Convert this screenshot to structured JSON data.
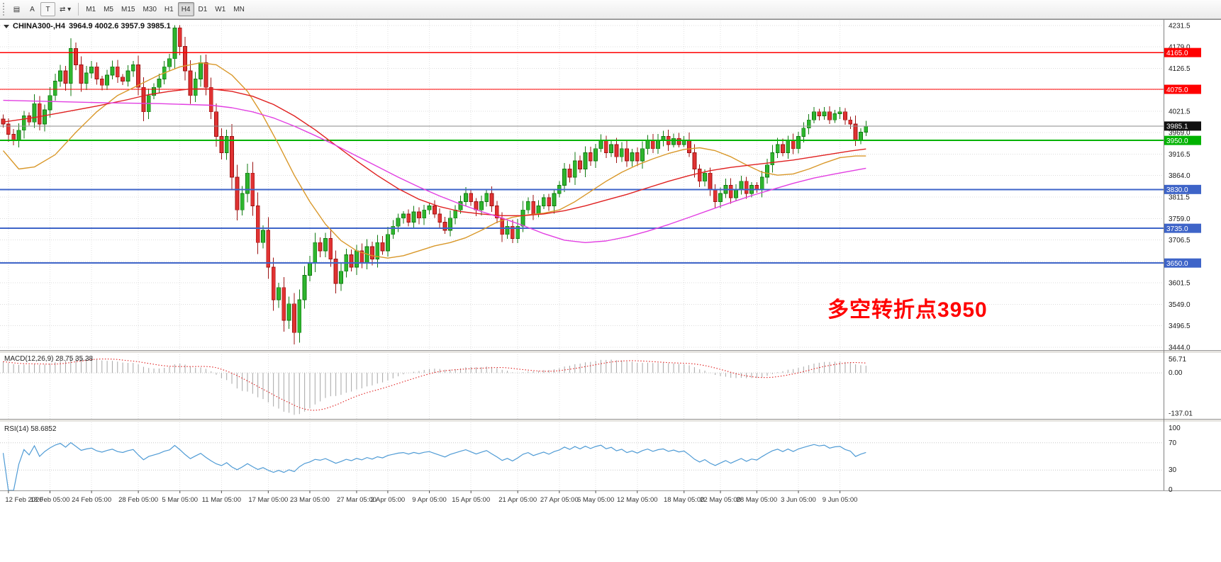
{
  "toolbar": {
    "left_buttons": [
      {
        "name": "chart-display-button",
        "label": "▤",
        "boxed": false
      },
      {
        "name": "button-a",
        "label": "A",
        "boxed": false
      },
      {
        "name": "button-t",
        "label": "T",
        "boxed": true
      },
      {
        "name": "symbols-arrows-dropdown-button",
        "label": "⇄ ▾",
        "boxed": false
      }
    ],
    "timeframes": [
      "M1",
      "M5",
      "M15",
      "M30",
      "H1",
      "H4",
      "D1",
      "W1",
      "MN"
    ],
    "active_timeframe": "H4"
  },
  "chart": {
    "title": {
      "symbol": "CHINA300-,H4",
      "ohlc": "3964.9 4002.6 3957.9 3985.1"
    },
    "annotation": {
      "text": "多空转折点3950",
      "color": "#ff0000"
    },
    "price_axis": {
      "range": {
        "min": 3437,
        "max": 4245
      },
      "visible_ticks": [
        4231.5,
        4179.0,
        4126.5,
        4021.5,
        3969.0,
        3916.5,
        3864.0,
        3811.5,
        3759.0,
        3706.5,
        3601.5,
        3549.0,
        3496.5,
        3444.0
      ],
      "grid_ticks": [
        4231.5,
        4179.0,
        4126.5,
        4074.0,
        4021.5,
        3969.0,
        3916.5,
        3864.0,
        3811.5,
        3759.0,
        3706.5,
        3654.0,
        3601.5,
        3549.0,
        3496.5,
        3444.0
      ]
    },
    "current_price": {
      "value": 3985.1,
      "label": "3985.1",
      "box_color": "#111111"
    },
    "hlines": [
      {
        "price": 4165.0,
        "label": "4165.0",
        "color": "#ff0000",
        "width": 1.4
      },
      {
        "price": 4075.0,
        "label": "4075.0",
        "color": "#ff0000",
        "width": 1.4
      },
      {
        "price": 3950.0,
        "label": "3950.0",
        "color": "#00b200",
        "width": 2
      },
      {
        "price": 3830.0,
        "label": "3830.0",
        "color": "#3e64c8",
        "width": 2
      },
      {
        "price": 3735.0,
        "label": "3735.0",
        "color": "#3e64c8",
        "width": 2
      },
      {
        "price": 3650.0,
        "label": "3650.0",
        "color": "#3e64c8",
        "width": 2
      }
    ],
    "candles": {
      "up_color": "#2eb52e",
      "up_stroke": "#117a11",
      "down_color": "#e03232",
      "down_stroke": "#9c1313",
      "closes": [
        3990,
        3965,
        3950,
        3975,
        4010,
        3995,
        4040,
        3990,
        4025,
        4060,
        4095,
        4120,
        4090,
        4175,
        4135,
        4090,
        4115,
        4130,
        4100,
        4085,
        4110,
        4130,
        4105,
        4095,
        4120,
        4135,
        4080,
        4020,
        4060,
        4080,
        4100,
        4130,
        4150,
        4225,
        4180,
        4120,
        4060,
        4100,
        4140,
        4080,
        4020,
        3960,
        3920,
        3960,
        3860,
        3780,
        3820,
        3870,
        3790,
        3700,
        3730,
        3640,
        3560,
        3590,
        3510,
        3550,
        3480,
        3560,
        3620,
        3650,
        3700,
        3680,
        3710,
        3660,
        3600,
        3630,
        3670,
        3640,
        3680,
        3650,
        3690,
        3660,
        3700,
        3680,
        3720,
        3740,
        3760,
        3770,
        3750,
        3775,
        3760,
        3780,
        3790,
        3770,
        3750,
        3730,
        3760,
        3780,
        3800,
        3820,
        3800,
        3780,
        3800,
        3820,
        3790,
        3760,
        3720,
        3740,
        3710,
        3740,
        3780,
        3800,
        3770,
        3790,
        3810,
        3790,
        3820,
        3840,
        3880,
        3860,
        3900,
        3880,
        3920,
        3900,
        3930,
        3950,
        3920,
        3940,
        3910,
        3930,
        3900,
        3920,
        3900,
        3930,
        3950,
        3930,
        3950,
        3960,
        3940,
        3955,
        3940,
        3950,
        3920,
        3880,
        3850,
        3870,
        3830,
        3800,
        3820,
        3840,
        3810,
        3830,
        3850,
        3820,
        3840,
        3830,
        3860,
        3890,
        3920,
        3940,
        3920,
        3950,
        3930,
        3960,
        3980,
        4000,
        4020,
        4010,
        4020,
        4000,
        4015,
        4020,
        4000,
        3990,
        3950,
        3970,
        3985.1
      ]
    },
    "ma_lines": [
      {
        "name": "ma-fast-orange",
        "color": "#d9982a",
        "points": [
          [
            0,
            3925
          ],
          [
            3,
            3880
          ],
          [
            6,
            3885
          ],
          [
            10,
            3915
          ],
          [
            14,
            3970
          ],
          [
            18,
            4020
          ],
          [
            22,
            4060
          ],
          [
            26,
            4085
          ],
          [
            30,
            4110
          ],
          [
            34,
            4130
          ],
          [
            38,
            4140
          ],
          [
            41,
            4135
          ],
          [
            44,
            4110
          ],
          [
            47,
            4070
          ],
          [
            50,
            4010
          ],
          [
            53,
            3940
          ],
          [
            56,
            3865
          ],
          [
            59,
            3800
          ],
          [
            62,
            3745
          ],
          [
            65,
            3705
          ],
          [
            68,
            3680
          ],
          [
            71,
            3668
          ],
          [
            74,
            3662
          ],
          [
            77,
            3668
          ],
          [
            80,
            3680
          ],
          [
            83,
            3692
          ],
          [
            86,
            3700
          ],
          [
            89,
            3712
          ],
          [
            92,
            3730
          ],
          [
            95,
            3750
          ],
          [
            98,
            3762
          ],
          [
            101,
            3768
          ],
          [
            104,
            3772
          ],
          [
            107,
            3780
          ],
          [
            110,
            3800
          ],
          [
            113,
            3825
          ],
          [
            116,
            3850
          ],
          [
            119,
            3872
          ],
          [
            122,
            3890
          ],
          [
            125,
            3905
          ],
          [
            128,
            3918
          ],
          [
            131,
            3928
          ],
          [
            134,
            3932
          ],
          [
            137,
            3925
          ],
          [
            140,
            3910
          ],
          [
            143,
            3890
          ],
          [
            146,
            3872
          ],
          [
            149,
            3865
          ],
          [
            152,
            3868
          ],
          [
            155,
            3880
          ],
          [
            158,
            3895
          ],
          [
            161,
            3908
          ],
          [
            164,
            3912
          ],
          [
            166,
            3912
          ]
        ]
      },
      {
        "name": "ma-mid-red",
        "color": "#e02020",
        "points": [
          [
            0,
            3995
          ],
          [
            6,
            4006
          ],
          [
            12,
            4020
          ],
          [
            18,
            4034
          ],
          [
            24,
            4050
          ],
          [
            28,
            4062
          ],
          [
            32,
            4070
          ],
          [
            36,
            4076
          ],
          [
            40,
            4076
          ],
          [
            44,
            4070
          ],
          [
            48,
            4058
          ],
          [
            52,
            4038
          ],
          [
            56,
            4010
          ],
          [
            60,
            3976
          ],
          [
            64,
            3938
          ],
          [
            68,
            3900
          ],
          [
            72,
            3864
          ],
          [
            76,
            3832
          ],
          [
            80,
            3806
          ],
          [
            84,
            3788
          ],
          [
            88,
            3776
          ],
          [
            92,
            3770
          ],
          [
            96,
            3766
          ],
          [
            100,
            3766
          ],
          [
            104,
            3770
          ],
          [
            108,
            3778
          ],
          [
            112,
            3790
          ],
          [
            116,
            3804
          ],
          [
            120,
            3818
          ],
          [
            124,
            3834
          ],
          [
            128,
            3850
          ],
          [
            132,
            3864
          ],
          [
            136,
            3876
          ],
          [
            140,
            3884
          ],
          [
            144,
            3890
          ],
          [
            148,
            3896
          ],
          [
            152,
            3902
          ],
          [
            156,
            3910
          ],
          [
            160,
            3918
          ],
          [
            163,
            3924
          ],
          [
            166,
            3929
          ]
        ]
      },
      {
        "name": "ma-slow-magenta",
        "color": "#e23fe2",
        "points": [
          [
            0,
            4048
          ],
          [
            10,
            4045
          ],
          [
            20,
            4042
          ],
          [
            30,
            4040
          ],
          [
            40,
            4036
          ],
          [
            44,
            4030
          ],
          [
            48,
            4020
          ],
          [
            52,
            4005
          ],
          [
            56,
            3985
          ],
          [
            60,
            3962
          ],
          [
            64,
            3938
          ],
          [
            68,
            3912
          ],
          [
            72,
            3886
          ],
          [
            76,
            3860
          ],
          [
            80,
            3836
          ],
          [
            84,
            3814
          ],
          [
            88,
            3794
          ],
          [
            92,
            3776
          ],
          [
            96,
            3760
          ],
          [
            100,
            3742
          ],
          [
            104,
            3722
          ],
          [
            108,
            3706
          ],
          [
            112,
            3700
          ],
          [
            116,
            3704
          ],
          [
            120,
            3714
          ],
          [
            124,
            3728
          ],
          [
            128,
            3744
          ],
          [
            132,
            3762
          ],
          [
            136,
            3780
          ],
          [
            140,
            3798
          ],
          [
            144,
            3815
          ],
          [
            148,
            3830
          ],
          [
            152,
            3845
          ],
          [
            156,
            3858
          ],
          [
            160,
            3868
          ],
          [
            163,
            3875
          ],
          [
            166,
            3882
          ]
        ]
      }
    ]
  },
  "macd": {
    "label": "MACD(12,26,9) 28.75 35.38",
    "params": {
      "fast": 12,
      "slow": 26,
      "signal": 9
    },
    "ticks": [
      "56.71",
      "0.00",
      "-137.01"
    ],
    "tick_values": [
      56.71,
      0,
      -137.01
    ],
    "histogram_color": "#a6a6a6",
    "signal_color": "#e02020"
  },
  "rsi": {
    "label": "RSI(14) 58.6852",
    "period": 14,
    "ticks": [
      "100",
      "70",
      "30",
      "0"
    ],
    "tick_values": [
      100,
      70,
      30,
      0
    ],
    "levels": [
      70,
      30
    ],
    "line_color": "#4f9bd5"
  },
  "time_axis": [
    {
      "idx": 1,
      "label": "12 Feb 2020"
    },
    {
      "idx": 9,
      "label": "18 Feb 05:00"
    },
    {
      "idx": 17,
      "label": "24 Feb 05:00"
    },
    {
      "idx": 26,
      "label": "28 Feb 05:00"
    },
    {
      "idx": 34,
      "label": "5 Mar 05:00"
    },
    {
      "idx": 42,
      "label": "11 Mar 05:00"
    },
    {
      "idx": 51,
      "label": "17 Mar 05:00"
    },
    {
      "idx": 59,
      "label": "23 Mar 05:00"
    },
    {
      "idx": 68,
      "label": "27 Mar 05:00"
    },
    {
      "idx": 74,
      "label": "2 Apr 05:00"
    },
    {
      "idx": 82,
      "label": "9 Apr 05:00"
    },
    {
      "idx": 90,
      "label": "15 Apr 05:00"
    },
    {
      "idx": 99,
      "label": "21 Apr 05:00"
    },
    {
      "idx": 107,
      "label": "27 Apr 05:00"
    },
    {
      "idx": 114,
      "label": "6 May 05:00"
    },
    {
      "idx": 122,
      "label": "12 May 05:00"
    },
    {
      "idx": 131,
      "label": "18 May 05:00"
    },
    {
      "idx": 138,
      "label": "22 May 05:00"
    },
    {
      "idx": 145,
      "label": "28 May 05:00"
    },
    {
      "idx": 153,
      "label": "3 Jun 05:00"
    },
    {
      "idx": 161,
      "label": "9 Jun 05:00"
    }
  ]
}
